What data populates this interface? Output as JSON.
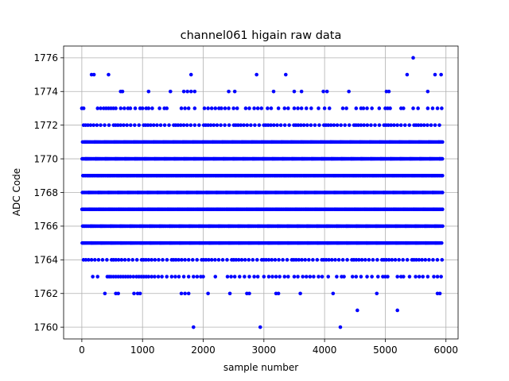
{
  "chart_data": {
    "type": "scatter",
    "title": "channel061 higain raw data",
    "xlabel": "sample number",
    "ylabel": "ADC Code",
    "xlim": [
      -300,
      6200
    ],
    "ylim": [
      1759.3,
      1776.7
    ],
    "xticks": [
      0,
      1000,
      2000,
      3000,
      4000,
      5000,
      6000
    ],
    "yticks": [
      1760,
      1762,
      1764,
      1766,
      1768,
      1770,
      1772,
      1774,
      1776
    ],
    "grid": true,
    "marker_color": "#0000ff",
    "sample_count": 5950,
    "dense_levels": [
      1765,
      1766,
      1767,
      1768,
      1769,
      1770,
      1771
    ],
    "medium_levels": [
      1764,
      1772
    ],
    "sparse_levels": [
      {
        "level": 1763,
        "x": [
          180,
          260,
          420,
          450,
          480,
          520,
          560,
          600,
          640,
          680,
          720,
          760,
          800,
          850,
          900,
          940,
          980,
          1020,
          1060,
          1100,
          1150,
          1200,
          1260,
          1320,
          1400,
          1480,
          1540,
          1600,
          1680,
          1760,
          1840,
          1900,
          1960,
          2000,
          2200,
          2400,
          2460,
          2520,
          2600,
          2680,
          2760,
          2840,
          2900,
          3000,
          3080,
          3140,
          3200,
          3260,
          3340,
          3400,
          3500,
          3560,
          3640,
          3700,
          3760,
          3820,
          3900,
          3960,
          4060,
          4200,
          4280,
          4320,
          4460,
          4520,
          4600,
          4700,
          4780,
          4880,
          4960,
          5000,
          5040,
          5200,
          5260,
          5300,
          5400,
          5500,
          5560,
          5620,
          5700,
          5800,
          5860,
          5920
        ]
      },
      {
        "level": 1773,
        "x": [
          0,
          30,
          260,
          310,
          360,
          400,
          440,
          480,
          520,
          560,
          640,
          700,
          760,
          800,
          880,
          960,
          1000,
          1060,
          1100,
          1160,
          1280,
          1360,
          1400,
          1640,
          1700,
          1760,
          1860,
          2020,
          2080,
          2140,
          2200,
          2260,
          2300,
          2360,
          2420,
          2500,
          2560,
          2700,
          2760,
          2840,
          2900,
          2960,
          3060,
          3120,
          3240,
          3340,
          3400,
          3500,
          3560,
          3620,
          3700,
          3780,
          3900,
          4000,
          4080,
          4300,
          4360,
          4520,
          4600,
          4640,
          4700,
          4780,
          4900,
          5000,
          5040,
          5080,
          5260,
          5300,
          5460,
          5540,
          5700,
          5780,
          5860,
          5930
        ]
      },
      {
        "level": 1762,
        "x": [
          380,
          560,
          600,
          860,
          920,
          960,
          1640,
          1700,
          1760,
          2080,
          2440,
          2720,
          2760,
          3200,
          3240,
          3600,
          4140,
          4860,
          5860,
          5900
        ]
      },
      {
        "level": 1774,
        "x": [
          640,
          670,
          1100,
          1460,
          1680,
          1740,
          1800,
          1860,
          2420,
          2520,
          3160,
          3500,
          3620,
          3980,
          4040,
          4400,
          5020,
          5060,
          5700
        ]
      },
      {
        "level": 1775,
        "x": [
          160,
          200,
          440,
          1800,
          2880,
          3360,
          5360,
          5820,
          5920
        ]
      },
      {
        "level": 1761,
        "x": [
          4540,
          5200
        ]
      },
      {
        "level": 1760,
        "x": [
          1840,
          2940,
          4260
        ]
      },
      {
        "level": 1776,
        "x": [
          5460
        ]
      }
    ]
  }
}
